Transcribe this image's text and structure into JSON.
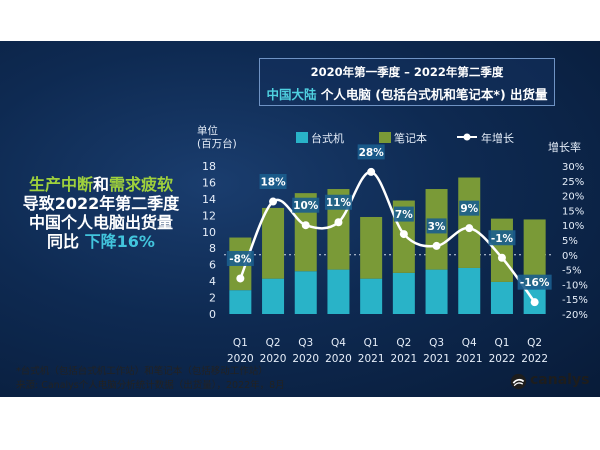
{
  "title": {
    "line1": "2020年第一季度 – 2022年第二季度",
    "line2_highlight": "中国大陆",
    "line2_rest": " 个人电脑 (包括台式机和笔记本*) 出货量"
  },
  "headline": {
    "seg1": "生产中断",
    "seg2": "和",
    "seg3": "需求疲软",
    "line2": "导致2022年第二季度",
    "line3": "中国个人电脑出货量",
    "line4a": "同比 ",
    "line4b": "下降16%"
  },
  "colors": {
    "desktop": "#29b3c8",
    "notebook": "#7a9a37",
    "growth_line": "#ffffff",
    "label_box": "#1b5e8e",
    "highlight_green": "#9fd13c",
    "highlight_cyan": "#42c5dd"
  },
  "chart_data": {
    "type": "bar",
    "stacked": true,
    "ylabel": "单位\n(百万台)",
    "ylabel_line1": "单位",
    "ylabel_line2": "(百万台)",
    "y2label": "增长率",
    "ylim": [
      0,
      18
    ],
    "y_ticks": [
      0,
      2,
      4,
      6,
      8,
      10,
      12,
      14,
      16,
      18
    ],
    "y2lim": [
      -20,
      30
    ],
    "y2_ticks": [
      "30%",
      "25%",
      "20%",
      "15%",
      "10%",
      "5%",
      "0%",
      "-5%",
      "-10%",
      "-15%",
      "-20%"
    ],
    "legend": [
      "台式机",
      "笔记本",
      "年增长"
    ],
    "legend_position": "top",
    "categories": [
      [
        "Q1",
        "2020"
      ],
      [
        "Q2",
        "2020"
      ],
      [
        "Q3",
        "2020"
      ],
      [
        "Q4",
        "2020"
      ],
      [
        "Q1",
        "2021"
      ],
      [
        "Q2",
        "2021"
      ],
      [
        "Q3",
        "2021"
      ],
      [
        "Q4",
        "2021"
      ],
      [
        "Q1",
        "2022"
      ],
      [
        "Q2",
        "2022"
      ]
    ],
    "series": [
      {
        "name": "台式机",
        "values": [
          2.9,
          4.3,
          5.2,
          5.4,
          4.3,
          5.0,
          5.4,
          5.6,
          3.9,
          3.5
        ]
      },
      {
        "name": "笔记本",
        "values": [
          6.4,
          8.6,
          9.5,
          9.8,
          7.5,
          8.8,
          9.8,
          11.0,
          7.7,
          8.0
        ]
      },
      {
        "name": "年增长",
        "axis": "right",
        "values": [
          -8,
          18,
          10,
          11,
          28,
          7,
          3,
          9,
          -1,
          -16
        ],
        "labels": [
          "-8%",
          "18%",
          "10%",
          "11%",
          "28%",
          "7%",
          "3%",
          "9%",
          "-1%",
          "-16%"
        ]
      }
    ]
  },
  "footer": {
    "note": "*台式机（包括台式机工作站）和笔记本（包括移动工作站）",
    "source": "来源: Canalys个人电脑分析统计数据（出货量），2022年，8月"
  },
  "logo": {
    "text": "canalys",
    "icon": "canalys-logo-icon"
  }
}
